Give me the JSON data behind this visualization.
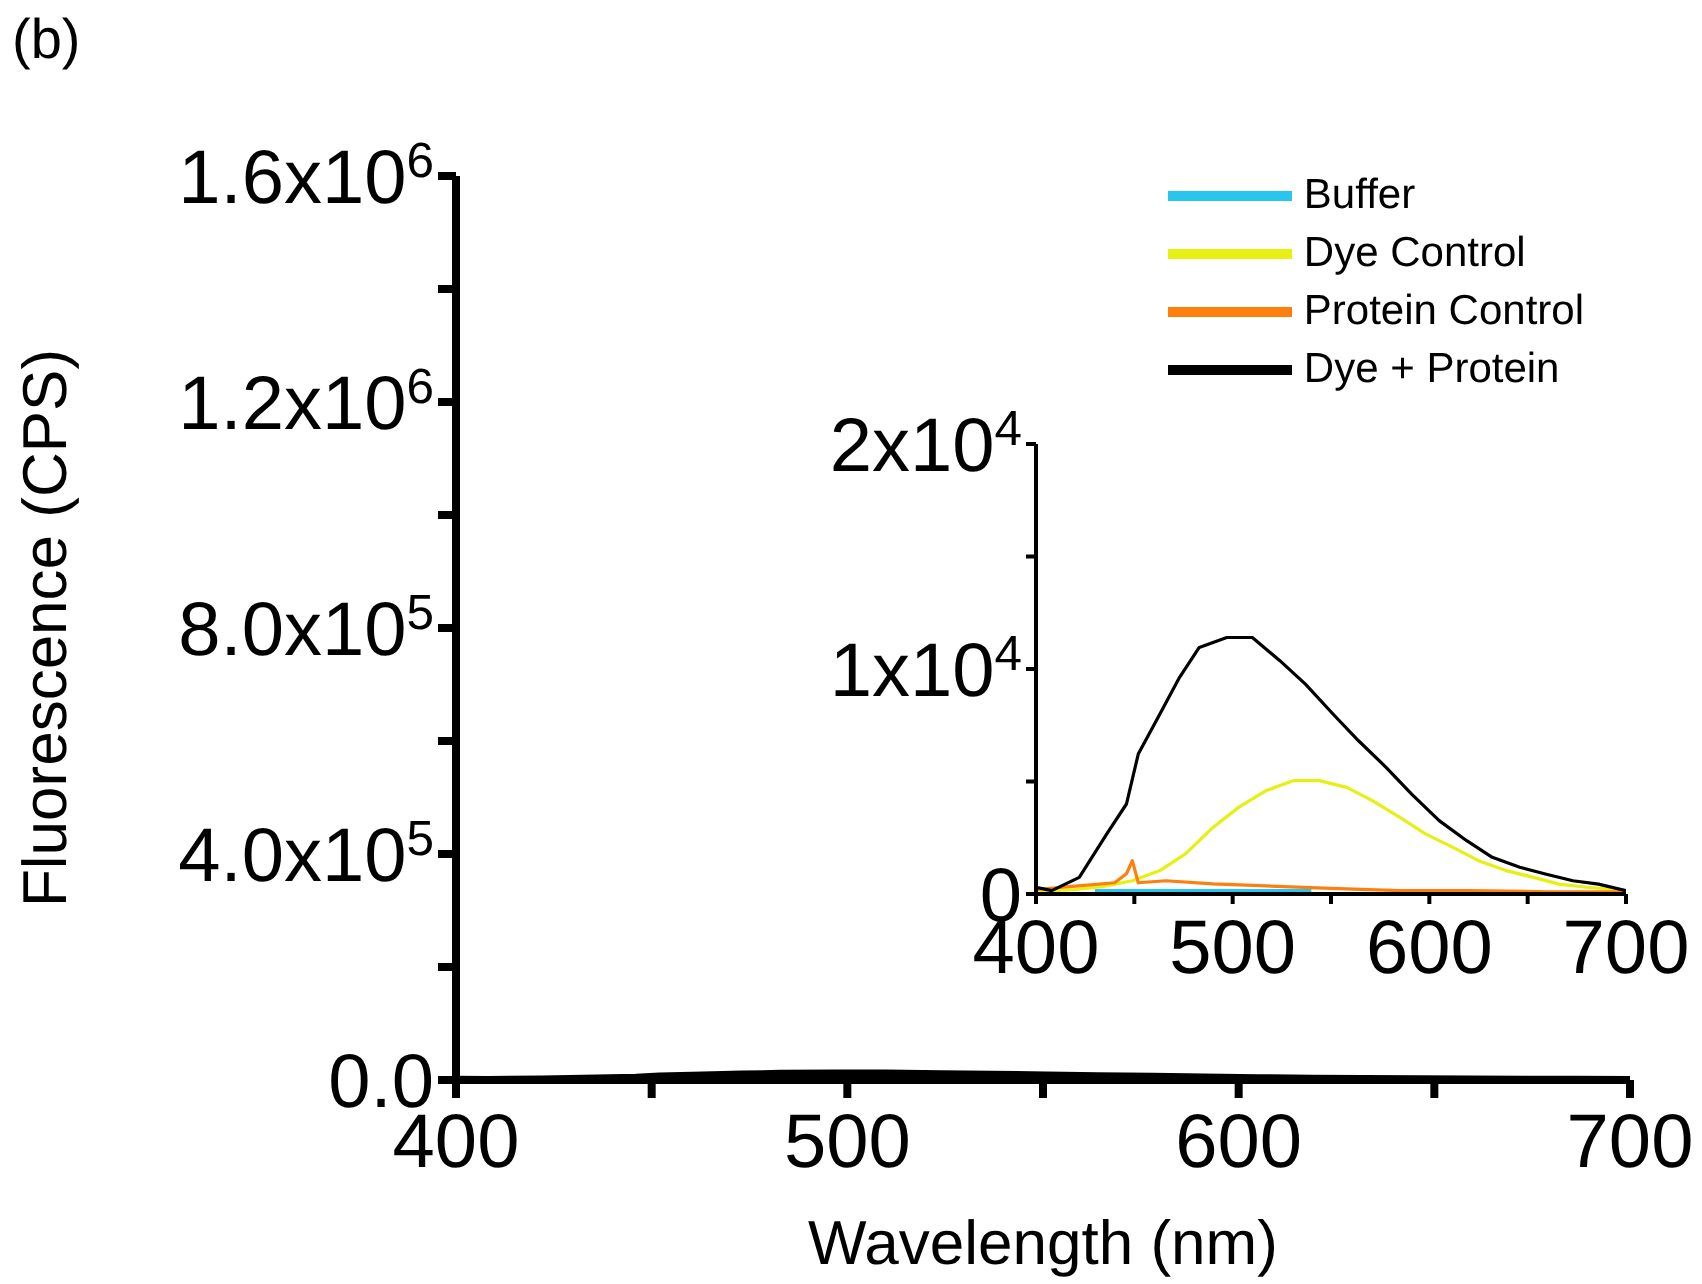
{
  "chart_data": [
    {
      "type": "line",
      "xlabel": "Wavelength (nm)",
      "ylabel": "Fluorescence (CPS)",
      "annotations": [
        "(b)"
      ],
      "legend": "top right",
      "xlim": [
        400,
        700
      ],
      "xticks": [
        400,
        {
          "value": 450,
          "label": null
        },
        500,
        {
          "value": 550,
          "label": null
        },
        600,
        {
          "value": 650,
          "label": null
        },
        700
      ],
      "ylim": [
        0,
        1600000
      ],
      "yticks": [
        {
          "value": 0,
          "label": "0.0"
        },
        {
          "value": 200000,
          "label": null
        },
        {
          "value": 400000,
          "label": "4.0x10$^{5}$"
        },
        {
          "value": 600000,
          "label": null
        },
        {
          "value": 800000,
          "label": "8.0x10$^{5}$"
        },
        {
          "value": 1000000,
          "label": null
        },
        {
          "value": 1200000,
          "label": "1.2x10$^{6}$"
        },
        {
          "value": 1400000,
          "label": null
        },
        {
          "value": 1600000,
          "label": "1.6x10$^{6}$"
        }
      ],
      "series": [
        {
          "name": "Buffer",
          "color": "#29c5ef"
        },
        {
          "name": "Dye Control",
          "color": "#e6f013"
        },
        {
          "name": "Protein Control",
          "color": "#ff7f0e"
        },
        {
          "name": "Dye + Protein",
          "color": "#000000",
          "x": [
            400,
            408,
            422,
            436,
            446,
            452,
            463,
            473,
            483,
            497,
            510,
            524,
            537,
            551,
            564,
            578,
            591,
            605,
            619,
            632,
            646,
            659,
            673,
            686,
            700
          ],
          "values": [
            300,
            150,
            740,
            2670,
            4000,
            6220,
            8000,
            9630,
            10960,
            11400,
            11400,
            10370,
            9330,
            8000,
            6810,
            5630,
            4440,
            3260,
            2370,
            1630,
            1190,
            890,
            590,
            440,
            150
          ]
        }
      ]
    },
    {
      "type": "line",
      "xlim": [
        400,
        700
      ],
      "xticks": [
        400,
        {
          "value": 450,
          "label": null
        },
        500,
        {
          "value": 550,
          "label": null
        },
        600,
        {
          "value": 650,
          "label": null
        },
        700
      ],
      "ylim": [
        0,
        20000
      ],
      "yticks": [
        0,
        {
          "value": 5000,
          "label": null
        },
        {
          "value": 10000,
          "label": "1x10$^{4}$"
        },
        {
          "value": 15000,
          "label": null
        },
        {
          "value": 20000,
          "label": "2x10$^{4}$"
        }
      ],
      "series": [
        {
          "color": "#29c5ef",
          "x": [
            430,
            446,
            450,
            470,
            500,
            540
          ],
          "values": [
            150,
            150,
            150,
            150,
            150,
            150
          ]
        },
        {
          "color": "#e6f013",
          "x": [
            400,
            420,
            435,
            449,
            463,
            476,
            490,
            503,
            517,
            531,
            544,
            558,
            571,
            585,
            598,
            612,
            625,
            639,
            653,
            666,
            680,
            700
          ],
          "values": [
            100,
            200,
            350,
            590,
            1040,
            1780,
            2960,
            3850,
            4590,
            5040,
            5040,
            4740,
            4150,
            3410,
            2670,
            2070,
            1480,
            1040,
            740,
            440,
            300,
            150
          ]
        },
        {
          "color": "#ff7f0e",
          "x": [
            400,
            420,
            440,
            446,
            449,
            452,
            466,
            490,
            517,
            550,
            585,
            620,
            660,
            700
          ],
          "values": [
            200,
            350,
            500,
            900,
            1480,
            500,
            590,
            450,
            360,
            250,
            150,
            150,
            100,
            100
          ]
        },
        {
          "color": "#000000",
          "x": [
            400,
            408,
            422,
            436,
            446,
            452,
            463,
            473,
            483,
            497,
            510,
            524,
            537,
            551,
            564,
            578,
            591,
            605,
            619,
            632,
            646,
            659,
            673,
            686,
            700
          ],
          "values": [
            300,
            150,
            740,
            2670,
            4000,
            6220,
            8000,
            9630,
            10960,
            11400,
            11400,
            10370,
            9330,
            8000,
            6810,
            5630,
            4440,
            3260,
            2370,
            1630,
            1190,
            890,
            590,
            440,
            150
          ]
        }
      ]
    }
  ]
}
